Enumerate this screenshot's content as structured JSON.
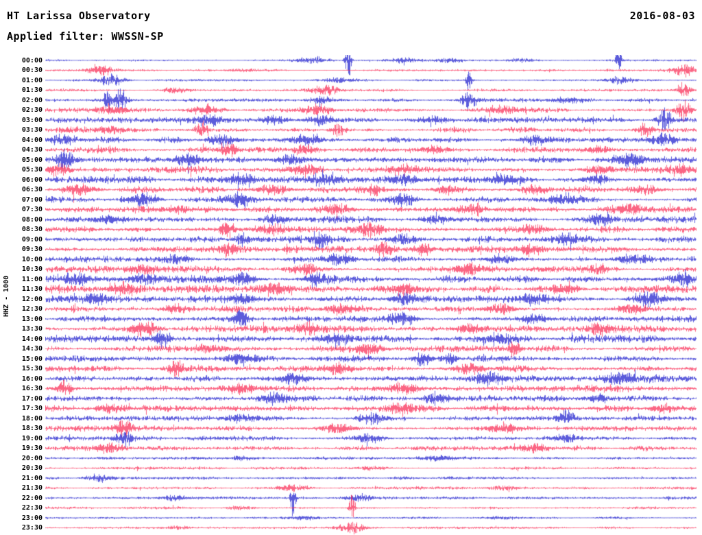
{
  "header": {
    "station": "HT Larissa Observatory",
    "date": "2016-08-03",
    "filter_label": "Applied filter: WWSSN-SP"
  },
  "axis": {
    "left_label": "HHZ - 1000"
  },
  "colors": {
    "blue": "#1414cc",
    "red": "#f9224e",
    "background": "#ffffff",
    "text": "#000000"
  },
  "chart_data": {
    "type": "line",
    "subtype": "helicorder-seismogram",
    "title": "HT Larissa Observatory",
    "date": "2016-08-03",
    "filter": "WWSSN-SP",
    "channel_scale": "HHZ - 1000",
    "row_interval_minutes": 30,
    "minutes_per_row": 30,
    "x_range": [
      "00:00",
      "24:00"
    ],
    "legend": "alternating blue/red traces per 30-minute segment; activity is relative amplitude 0-1; events are [position-fraction, spike-size-px]",
    "rows": [
      {
        "t": "00:00",
        "c": "blue",
        "a": 0.06,
        "e": [
          [
            0.465,
            40
          ],
          [
            0.41,
            6
          ],
          [
            0.55,
            5
          ],
          [
            0.62,
            4
          ],
          [
            0.73,
            4
          ],
          [
            0.88,
            24
          ]
        ]
      },
      {
        "t": "00:30",
        "c": "red",
        "a": 0.1,
        "e": [
          [
            0.085,
            8
          ],
          [
            0.3,
            3
          ],
          [
            0.98,
            10
          ]
        ]
      },
      {
        "t": "01:00",
        "c": "blue",
        "a": 0.08,
        "e": [
          [
            0.1,
            10
          ],
          [
            0.45,
            4
          ],
          [
            0.65,
            22
          ],
          [
            0.88,
            6
          ]
        ]
      },
      {
        "t": "01:30",
        "c": "red",
        "a": 0.14,
        "e": [
          [
            0.2,
            4
          ],
          [
            0.43,
            10
          ],
          [
            0.98,
            12
          ]
        ]
      },
      {
        "t": "02:00",
        "c": "blue",
        "a": 0.22,
        "e": [
          [
            0.095,
            22
          ],
          [
            0.115,
            18
          ],
          [
            0.42,
            6
          ],
          [
            0.65,
            16
          ],
          [
            0.8,
            5
          ]
        ]
      },
      {
        "t": "02:30",
        "c": "red",
        "a": 0.3,
        "e": [
          [
            0.1,
            8
          ],
          [
            0.25,
            8
          ],
          [
            0.42,
            10
          ],
          [
            0.7,
            6
          ],
          [
            0.98,
            16
          ]
        ]
      },
      {
        "t": "03:00",
        "c": "blue",
        "a": 0.38,
        "e": [
          [
            0.25,
            10
          ],
          [
            0.35,
            8
          ],
          [
            0.42,
            8
          ],
          [
            0.6,
            6
          ],
          [
            0.95,
            18
          ]
        ]
      },
      {
        "t": "03:30",
        "c": "red",
        "a": 0.42,
        "e": [
          [
            0.1,
            6
          ],
          [
            0.24,
            14
          ],
          [
            0.45,
            12
          ],
          [
            0.92,
            12
          ]
        ]
      },
      {
        "t": "04:00",
        "c": "blue",
        "a": 0.42,
        "e": [
          [
            0.03,
            10
          ],
          [
            0.27,
            10
          ],
          [
            0.4,
            8
          ],
          [
            0.75,
            8
          ],
          [
            0.95,
            10
          ]
        ]
      },
      {
        "t": "04:30",
        "c": "red",
        "a": 0.48,
        "e": [
          [
            0.28,
            16
          ],
          [
            0.4,
            10
          ],
          [
            0.6,
            6
          ],
          [
            0.85,
            6
          ]
        ]
      },
      {
        "t": "05:00",
        "c": "blue",
        "a": 0.48,
        "e": [
          [
            0.03,
            16
          ],
          [
            0.22,
            10
          ],
          [
            0.38,
            8
          ],
          [
            0.9,
            10
          ]
        ]
      },
      {
        "t": "05:30",
        "c": "red",
        "a": 0.5,
        "e": [
          [
            0.02,
            10
          ],
          [
            0.4,
            10
          ],
          [
            0.55,
            8
          ],
          [
            0.85,
            8
          ],
          [
            0.97,
            10
          ]
        ]
      },
      {
        "t": "06:00",
        "c": "blue",
        "a": 0.46,
        "e": [
          [
            0.3,
            8
          ],
          [
            0.43,
            10
          ],
          [
            0.55,
            8
          ],
          [
            0.7,
            8
          ],
          [
            0.85,
            8
          ]
        ]
      },
      {
        "t": "06:30",
        "c": "red",
        "a": 0.5,
        "e": [
          [
            0.05,
            8
          ],
          [
            0.35,
            10
          ],
          [
            0.5,
            10
          ],
          [
            0.62,
            8
          ],
          [
            0.75,
            8
          ],
          [
            0.92,
            8
          ]
        ]
      },
      {
        "t": "07:00",
        "c": "blue",
        "a": 0.48,
        "e": [
          [
            0.15,
            10
          ],
          [
            0.3,
            8
          ],
          [
            0.55,
            10
          ],
          [
            0.8,
            8
          ]
        ]
      },
      {
        "t": "07:30",
        "c": "red",
        "a": 0.5,
        "e": [
          [
            0.2,
            8
          ],
          [
            0.45,
            8
          ],
          [
            0.65,
            8
          ],
          [
            0.9,
            8
          ]
        ]
      },
      {
        "t": "08:00",
        "c": "blue",
        "a": 0.46,
        "e": [
          [
            0.1,
            8
          ],
          [
            0.35,
            8
          ],
          [
            0.6,
            8
          ],
          [
            0.85,
            8
          ]
        ]
      },
      {
        "t": "08:30",
        "c": "red",
        "a": 0.5,
        "e": [
          [
            0.28,
            12
          ],
          [
            0.35,
            10
          ],
          [
            0.5,
            10
          ],
          [
            0.75,
            8
          ]
        ]
      },
      {
        "t": "09:00",
        "c": "blue",
        "a": 0.52,
        "e": [
          [
            0.3,
            12
          ],
          [
            0.42,
            12
          ],
          [
            0.55,
            10
          ],
          [
            0.8,
            8
          ]
        ]
      },
      {
        "t": "09:30",
        "c": "red",
        "a": 0.55,
        "e": [
          [
            0.28,
            12
          ],
          [
            0.52,
            12
          ],
          [
            0.58,
            12
          ],
          [
            0.75,
            8
          ]
        ]
      },
      {
        "t": "10:00",
        "c": "blue",
        "a": 0.52,
        "e": [
          [
            0.2,
            8
          ],
          [
            0.45,
            10
          ],
          [
            0.7,
            8
          ],
          [
            0.9,
            8
          ]
        ]
      },
      {
        "t": "10:30",
        "c": "red",
        "a": 0.5,
        "e": [
          [
            0.15,
            8
          ],
          [
            0.4,
            8
          ],
          [
            0.65,
            10
          ],
          [
            0.85,
            8
          ]
        ]
      },
      {
        "t": "11:00",
        "c": "blue",
        "a": 0.55,
        "e": [
          [
            0.05,
            10
          ],
          [
            0.15,
            10
          ],
          [
            0.3,
            10
          ],
          [
            0.42,
            10
          ],
          [
            0.98,
            12
          ]
        ]
      },
      {
        "t": "11:30",
        "c": "red",
        "a": 0.55,
        "e": [
          [
            0.12,
            10
          ],
          [
            0.35,
            10
          ],
          [
            0.55,
            8
          ],
          [
            0.8,
            8
          ]
        ]
      },
      {
        "t": "12:00",
        "c": "blue",
        "a": 0.52,
        "e": [
          [
            0.08,
            8
          ],
          [
            0.3,
            8
          ],
          [
            0.55,
            10
          ],
          [
            0.75,
            8
          ],
          [
            0.93,
            10
          ]
        ]
      },
      {
        "t": "12:30",
        "c": "red",
        "a": 0.5,
        "e": [
          [
            0.2,
            8
          ],
          [
            0.45,
            10
          ],
          [
            0.7,
            8
          ],
          [
            0.9,
            8
          ]
        ]
      },
      {
        "t": "13:00",
        "c": "blue",
        "a": 0.52,
        "e": [
          [
            0.3,
            14
          ],
          [
            0.55,
            10
          ],
          [
            0.75,
            8
          ]
        ]
      },
      {
        "t": "13:30",
        "c": "red",
        "a": 0.5,
        "e": [
          [
            0.15,
            10
          ],
          [
            0.4,
            8
          ],
          [
            0.65,
            8
          ],
          [
            0.85,
            8
          ]
        ]
      },
      {
        "t": "14:00",
        "c": "blue",
        "a": 0.5,
        "e": [
          [
            0.18,
            14
          ],
          [
            0.45,
            8
          ],
          [
            0.7,
            8
          ]
        ]
      },
      {
        "t": "14:30",
        "c": "red",
        "a": 0.5,
        "e": [
          [
            0.25,
            8
          ],
          [
            0.5,
            8
          ],
          [
            0.72,
            14
          ]
        ]
      },
      {
        "t": "15:00",
        "c": "blue",
        "a": 0.5,
        "e": [
          [
            0.3,
            8
          ],
          [
            0.58,
            14
          ],
          [
            0.62,
            12
          ]
        ]
      },
      {
        "t": "15:30",
        "c": "red",
        "a": 0.52,
        "e": [
          [
            0.2,
            14
          ],
          [
            0.45,
            8
          ],
          [
            0.65,
            10
          ]
        ]
      },
      {
        "t": "16:00",
        "c": "blue",
        "a": 0.5,
        "e": [
          [
            0.38,
            10
          ],
          [
            0.68,
            10
          ],
          [
            0.88,
            10
          ]
        ]
      },
      {
        "t": "16:30",
        "c": "red",
        "a": 0.5,
        "e": [
          [
            0.03,
            14
          ],
          [
            0.3,
            8
          ],
          [
            0.55,
            10
          ]
        ]
      },
      {
        "t": "17:00",
        "c": "blue",
        "a": 0.42,
        "e": [
          [
            0.35,
            10
          ],
          [
            0.6,
            8
          ],
          [
            0.85,
            6
          ]
        ]
      },
      {
        "t": "17:30",
        "c": "red",
        "a": 0.45,
        "e": [
          [
            0.1,
            8
          ],
          [
            0.55,
            10
          ],
          [
            0.95,
            8
          ]
        ]
      },
      {
        "t": "18:00",
        "c": "blue",
        "a": 0.45,
        "e": [
          [
            0.3,
            6
          ],
          [
            0.5,
            10
          ],
          [
            0.8,
            14
          ]
        ]
      },
      {
        "t": "18:30",
        "c": "red",
        "a": 0.42,
        "e": [
          [
            0.12,
            14
          ],
          [
            0.45,
            8
          ],
          [
            0.7,
            8
          ]
        ]
      },
      {
        "t": "19:00",
        "c": "blue",
        "a": 0.36,
        "e": [
          [
            0.12,
            14
          ],
          [
            0.5,
            6
          ],
          [
            0.8,
            6
          ]
        ]
      },
      {
        "t": "19:30",
        "c": "red",
        "a": 0.3,
        "e": [
          [
            0.1,
            8
          ],
          [
            0.75,
            8
          ]
        ]
      },
      {
        "t": "20:00",
        "c": "blue",
        "a": 0.18,
        "e": [
          [
            0.3,
            4
          ],
          [
            0.6,
            4
          ]
        ]
      },
      {
        "t": "20:30",
        "c": "red",
        "a": 0.15,
        "e": [
          [
            0.5,
            3
          ]
        ]
      },
      {
        "t": "21:00",
        "c": "blue",
        "a": 0.14,
        "e": [
          [
            0.08,
            6
          ],
          [
            0.55,
            3
          ]
        ]
      },
      {
        "t": "21:30",
        "c": "red",
        "a": 0.18,
        "e": [
          [
            0.38,
            6
          ],
          [
            0.7,
            4
          ]
        ]
      },
      {
        "t": "22:00",
        "c": "blue",
        "a": 0.14,
        "e": [
          [
            0.2,
            5
          ],
          [
            0.38,
            26
          ],
          [
            0.48,
            6
          ]
        ]
      },
      {
        "t": "22:30",
        "c": "red",
        "a": 0.12,
        "e": [
          [
            0.3,
            4
          ],
          [
            0.47,
            22
          ]
        ]
      },
      {
        "t": "23:00",
        "c": "blue",
        "a": 0.1,
        "e": [
          [
            0.4,
            3
          ],
          [
            0.7,
            3
          ]
        ]
      },
      {
        "t": "23:30",
        "c": "red",
        "a": 0.1,
        "e": [
          [
            0.2,
            3
          ],
          [
            0.47,
            10
          ]
        ]
      }
    ]
  }
}
